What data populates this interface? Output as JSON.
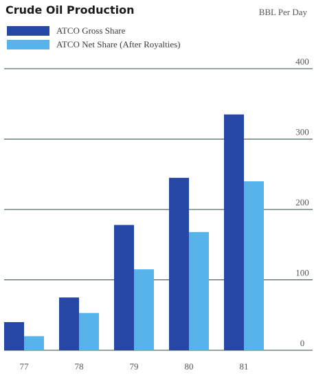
{
  "chart_data": {
    "type": "bar",
    "title": "Crude Oil Production",
    "ylabel": "BBL Per Day",
    "xlabel": "",
    "categories": [
      "77",
      "78",
      "79",
      "80",
      "81"
    ],
    "series": [
      {
        "name": "ATCO Gross Share",
        "color": "#2747a4",
        "values": [
          40,
          75,
          178,
          245,
          335
        ]
      },
      {
        "name": "ATCO Net Share (After Royalties)",
        "color": "#56b4ea",
        "values": [
          20,
          53,
          115,
          168,
          240
        ]
      }
    ],
    "ylim": [
      0,
      400
    ],
    "yticks": [
      "0",
      "100",
      "200",
      "300",
      "400"
    ],
    "grid": true,
    "legend_position": "top-left"
  }
}
